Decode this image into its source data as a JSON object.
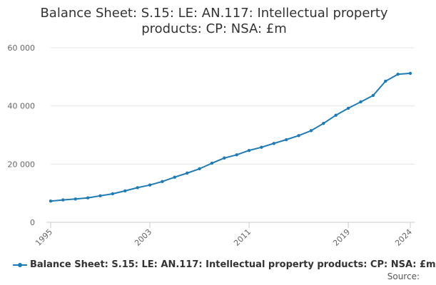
{
  "chart_data": {
    "type": "line",
    "title_lines": [
      "Balance Sheet: S.15: LE: AN.117: Intellectual property",
      "products: CP: NSA: £m"
    ],
    "xlabel": "",
    "ylabel": "",
    "xlim": [
      1995,
      2024
    ],
    "ylim": [
      0,
      60000
    ],
    "y_ticks": [
      0,
      20000,
      40000,
      60000
    ],
    "y_tick_labels": [
      "0",
      "20 000",
      "40 000",
      "60 000"
    ],
    "x_ticks": [
      1995,
      2003,
      2011,
      2019,
      2024
    ],
    "x_tick_labels": [
      "1995",
      "2003",
      "2011",
      "2019",
      "2024"
    ],
    "grid": true,
    "series": [
      {
        "name": "Balance Sheet: S.15: LE: AN.117: Intellectual property products: CP: NSA: £m",
        "color": "#1f7bb6",
        "x": [
          1995,
          1996,
          1997,
          1998,
          1999,
          2000,
          2001,
          2002,
          2003,
          2004,
          2005,
          2006,
          2007,
          2008,
          2009,
          2010,
          2011,
          2012,
          2013,
          2014,
          2015,
          2016,
          2017,
          2018,
          2019,
          2020,
          2021,
          2022,
          2023,
          2024
        ],
        "values": [
          7300,
          7700,
          8000,
          8400,
          9100,
          9800,
          10800,
          11900,
          12800,
          14000,
          15500,
          16900,
          18400,
          20300,
          22100,
          23200,
          24700,
          25800,
          27100,
          28400,
          29800,
          31500,
          34000,
          36800,
          39200,
          41400,
          43600,
          48500,
          50900,
          51200
        ]
      }
    ],
    "legend": [
      "Balance Sheet: S.15: LE: AN.117: Intellectual property products: CP: NSA: £m"
    ],
    "legend_position": "bottom",
    "source_label": "Source:"
  }
}
